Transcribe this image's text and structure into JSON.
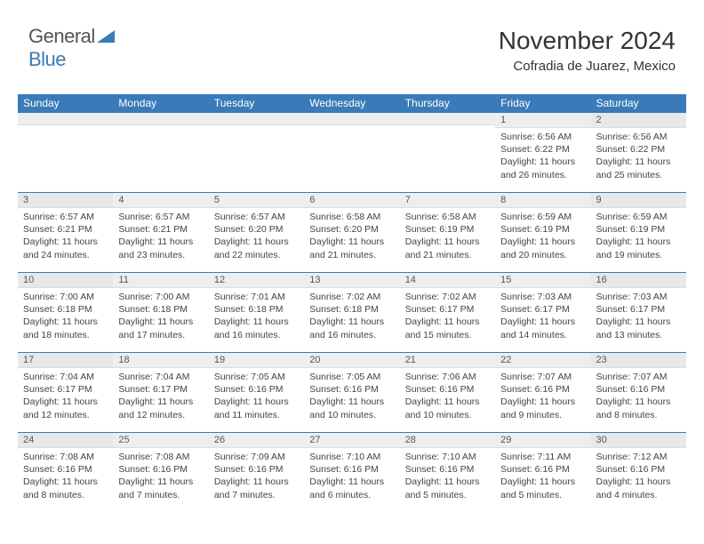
{
  "brand": {
    "general": "General",
    "blue": "Blue"
  },
  "header": {
    "month_title": "November 2024",
    "location": "Cofradia de Juarez, Mexico"
  },
  "colors": {
    "accent": "#3a7ab8",
    "header_text": "#ffffff",
    "daynum_bg": "#eeeeee",
    "border": "#3a7ab8"
  },
  "weekdays": [
    "Sunday",
    "Monday",
    "Tuesday",
    "Wednesday",
    "Thursday",
    "Friday",
    "Saturday"
  ],
  "weeks": [
    [
      null,
      null,
      null,
      null,
      null,
      {
        "n": "1",
        "sr": "6:56 AM",
        "ss": "6:22 PM",
        "dl": "11 hours and 26 minutes."
      },
      {
        "n": "2",
        "sr": "6:56 AM",
        "ss": "6:22 PM",
        "dl": "11 hours and 25 minutes."
      }
    ],
    [
      {
        "n": "3",
        "sr": "6:57 AM",
        "ss": "6:21 PM",
        "dl": "11 hours and 24 minutes."
      },
      {
        "n": "4",
        "sr": "6:57 AM",
        "ss": "6:21 PM",
        "dl": "11 hours and 23 minutes."
      },
      {
        "n": "5",
        "sr": "6:57 AM",
        "ss": "6:20 PM",
        "dl": "11 hours and 22 minutes."
      },
      {
        "n": "6",
        "sr": "6:58 AM",
        "ss": "6:20 PM",
        "dl": "11 hours and 21 minutes."
      },
      {
        "n": "7",
        "sr": "6:58 AM",
        "ss": "6:19 PM",
        "dl": "11 hours and 21 minutes."
      },
      {
        "n": "8",
        "sr": "6:59 AM",
        "ss": "6:19 PM",
        "dl": "11 hours and 20 minutes."
      },
      {
        "n": "9",
        "sr": "6:59 AM",
        "ss": "6:19 PM",
        "dl": "11 hours and 19 minutes."
      }
    ],
    [
      {
        "n": "10",
        "sr": "7:00 AM",
        "ss": "6:18 PM",
        "dl": "11 hours and 18 minutes."
      },
      {
        "n": "11",
        "sr": "7:00 AM",
        "ss": "6:18 PM",
        "dl": "11 hours and 17 minutes."
      },
      {
        "n": "12",
        "sr": "7:01 AM",
        "ss": "6:18 PM",
        "dl": "11 hours and 16 minutes."
      },
      {
        "n": "13",
        "sr": "7:02 AM",
        "ss": "6:18 PM",
        "dl": "11 hours and 16 minutes."
      },
      {
        "n": "14",
        "sr": "7:02 AM",
        "ss": "6:17 PM",
        "dl": "11 hours and 15 minutes."
      },
      {
        "n": "15",
        "sr": "7:03 AM",
        "ss": "6:17 PM",
        "dl": "11 hours and 14 minutes."
      },
      {
        "n": "16",
        "sr": "7:03 AM",
        "ss": "6:17 PM",
        "dl": "11 hours and 13 minutes."
      }
    ],
    [
      {
        "n": "17",
        "sr": "7:04 AM",
        "ss": "6:17 PM",
        "dl": "11 hours and 12 minutes."
      },
      {
        "n": "18",
        "sr": "7:04 AM",
        "ss": "6:17 PM",
        "dl": "11 hours and 12 minutes."
      },
      {
        "n": "19",
        "sr": "7:05 AM",
        "ss": "6:16 PM",
        "dl": "11 hours and 11 minutes."
      },
      {
        "n": "20",
        "sr": "7:05 AM",
        "ss": "6:16 PM",
        "dl": "11 hours and 10 minutes."
      },
      {
        "n": "21",
        "sr": "7:06 AM",
        "ss": "6:16 PM",
        "dl": "11 hours and 10 minutes."
      },
      {
        "n": "22",
        "sr": "7:07 AM",
        "ss": "6:16 PM",
        "dl": "11 hours and 9 minutes."
      },
      {
        "n": "23",
        "sr": "7:07 AM",
        "ss": "6:16 PM",
        "dl": "11 hours and 8 minutes."
      }
    ],
    [
      {
        "n": "24",
        "sr": "7:08 AM",
        "ss": "6:16 PM",
        "dl": "11 hours and 8 minutes."
      },
      {
        "n": "25",
        "sr": "7:08 AM",
        "ss": "6:16 PM",
        "dl": "11 hours and 7 minutes."
      },
      {
        "n": "26",
        "sr": "7:09 AM",
        "ss": "6:16 PM",
        "dl": "11 hours and 7 minutes."
      },
      {
        "n": "27",
        "sr": "7:10 AM",
        "ss": "6:16 PM",
        "dl": "11 hours and 6 minutes."
      },
      {
        "n": "28",
        "sr": "7:10 AM",
        "ss": "6:16 PM",
        "dl": "11 hours and 5 minutes."
      },
      {
        "n": "29",
        "sr": "7:11 AM",
        "ss": "6:16 PM",
        "dl": "11 hours and 5 minutes."
      },
      {
        "n": "30",
        "sr": "7:12 AM",
        "ss": "6:16 PM",
        "dl": "11 hours and 4 minutes."
      }
    ]
  ],
  "labels": {
    "sunrise": "Sunrise:",
    "sunset": "Sunset:",
    "daylight": "Daylight:"
  }
}
